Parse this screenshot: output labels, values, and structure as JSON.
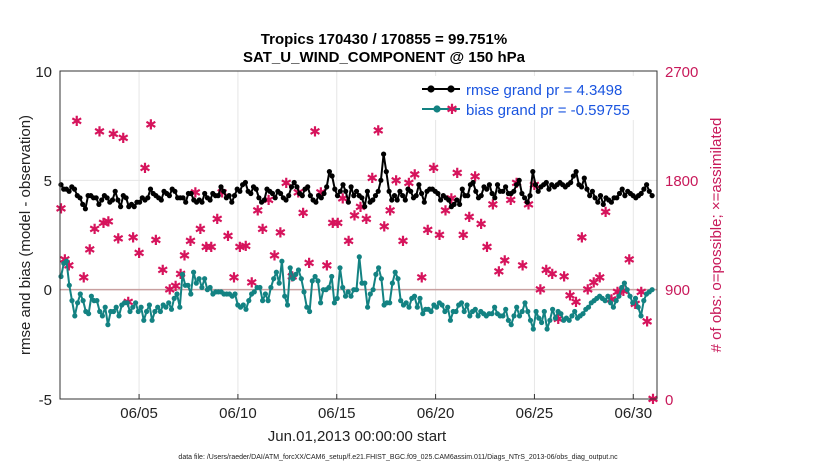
{
  "chart_data": {
    "type": "line",
    "title": "Tropics 170430 / 170855 = 99.751%",
    "subtitle": "SAT_U_WIND_COMPONENT @ 150 hPa",
    "xlabel": "Jun.01,2013 00:00:00 start",
    "ylabel": "rmse and bias (model - observation)",
    "ylabel_right": "# of obs: o=possible; ×=assimilated",
    "footnote": "data file: /Users/raeder/DAI/ATM_forcXX/CAM6_setup/f.e21.FHIST_BGC.f09_025.CAM6assim.011/Diags_NTrS_2013-06/obs_diag_output.nc",
    "xlim": [
      1,
      31.2
    ],
    "ylim": [
      -5,
      10
    ],
    "ylim_right": [
      0,
      2700
    ],
    "x_ticks": [
      {
        "value": 5,
        "label": "06/05"
      },
      {
        "value": 10,
        "label": "06/10"
      },
      {
        "value": 15,
        "label": "06/15"
      },
      {
        "value": 20,
        "label": "06/20"
      },
      {
        "value": 25,
        "label": "06/25"
      },
      {
        "value": 30,
        "label": "06/30"
      }
    ],
    "y_ticks": [
      "-5",
      "0",
      "5",
      "10"
    ],
    "y_ticks_right": [
      "0",
      "900",
      "1800",
      "2700"
    ],
    "grid": true,
    "legend_position": "top-right",
    "colors": {
      "rmse": "#000000",
      "bias": "#138282",
      "obs": "#d6145c",
      "zero_line": "#c8a0a0",
      "grid": "#e6e6e6"
    },
    "series": [
      {
        "name": "rmse grand pr = 4.3498",
        "axis": "left",
        "color": "#000000",
        "values": [
          4.8,
          4.6,
          4.6,
          4.5,
          4.7,
          4.6,
          4.3,
          4.2,
          3.9,
          3.7,
          4.3,
          4.3,
          4.2,
          4.2,
          3.9,
          4.1,
          4.3,
          4.2,
          4.0,
          4.1,
          4.5,
          4.1,
          3.8,
          4.3,
          4.2,
          3.8,
          3.9,
          3.8,
          4.0,
          4.0,
          4.2,
          4.1,
          4.2,
          4.6,
          4.4,
          4.3,
          4.2,
          4.1,
          4.5,
          4.4,
          4.3,
          4.6,
          4.5,
          4.2,
          4.2,
          4.2,
          4.0,
          4.4,
          4.4,
          4.1,
          4.0,
          4.1,
          4.0,
          4.4,
          4.2,
          4.1,
          4.4,
          4.3,
          4.3,
          4.7,
          4.5,
          4.2,
          4.3,
          4.0,
          4.3,
          4.6,
          4.5,
          4.8,
          4.9,
          4.5,
          4.4,
          4.7,
          4.6,
          4.2,
          4.0,
          4.1,
          4.6,
          4.5,
          4.4,
          4.2,
          4.5,
          4.4,
          4.2,
          4.1,
          4.3,
          4.7,
          4.9,
          4.7,
          4.4,
          4.3,
          4.6,
          4.7,
          4.3,
          4.1,
          4.0,
          4.3,
          4.2,
          4.4,
          4.7,
          5.4,
          5.2,
          4.6,
          4.3,
          4.5,
          4.8,
          4.5,
          4.0,
          4.7,
          4.3,
          4.5,
          4.3,
          4.2,
          3.8,
          4.5,
          4.0,
          4.1,
          4.3,
          4.5,
          5.0,
          6.2,
          5.4,
          4.5,
          4.1,
          4.3,
          4.1,
          4.5,
          4.3,
          4.1,
          4.6,
          4.5,
          4.2,
          4.3,
          4.8,
          4.4,
          4.0,
          4.5,
          4.6,
          4.6,
          4.5,
          4.4,
          4.1,
          4.3,
          4.2,
          4.1,
          3.8,
          3.9,
          4.1,
          3.9,
          4.6,
          4.3,
          4.3,
          4.8,
          4.9,
          4.5,
          4.2,
          4.3,
          4.7,
          4.6,
          4.8,
          4.4,
          4.2,
          4.8,
          4.5,
          4.5,
          4.7,
          4.4,
          4.4,
          4.5,
          4.8,
          5.0,
          4.4,
          4.2,
          4.0,
          4.3,
          5.4,
          4.8,
          4.5,
          4.7,
          4.8,
          4.9,
          4.6,
          4.8,
          4.7,
          4.8,
          4.9,
          4.8,
          4.7,
          4.8,
          4.9,
          5.2,
          5.4,
          4.8,
          4.7,
          5.1,
          4.6,
          4.3,
          4.5,
          4.2,
          4.0,
          4.3,
          3.9,
          4.2,
          4.1,
          4.0,
          4.2,
          4.2,
          4.4,
          4.6,
          4.3,
          4.5,
          4.4,
          4.3,
          4.2,
          4.3,
          4.4,
          4.6,
          4.8,
          4.5,
          4.3
        ]
      },
      {
        "name": "bias grand pr = -0.59755",
        "axis": "left",
        "color": "#138282",
        "values": [
          0.6,
          1.2,
          1.3,
          0.2,
          -0.5,
          -1.2,
          -0.6,
          -0.2,
          -0.5,
          -1.0,
          -1.1,
          -0.3,
          -0.5,
          -0.5,
          -1.0,
          -1.2,
          -0.8,
          -1.6,
          -1.0,
          -1.0,
          -0.8,
          -1.2,
          -0.7,
          -0.6,
          -0.6,
          -1.0,
          -0.8,
          -0.6,
          -1.0,
          -0.8,
          -1.4,
          -1.0,
          -0.7,
          -1.4,
          -1.0,
          -0.8,
          -1.0,
          -0.7,
          -0.8,
          -0.6,
          -0.9,
          -0.4,
          -0.2,
          -0.8,
          0.7,
          0.2,
          0.2,
          -0.2,
          0.8,
          0.3,
          0.5,
          0.1,
          0.5,
          0.0,
          0.1,
          -0.2,
          -0.1,
          -0.1,
          -0.1,
          -0.2,
          -0.2,
          -0.2,
          -0.3,
          -0.2,
          -0.7,
          -0.8,
          -0.7,
          -0.9,
          -0.5,
          -0.2,
          -0.1,
          0.1,
          0.1,
          -0.5,
          -0.2,
          -0.5,
          0.1,
          0.5,
          0.8,
          0.3,
          1.3,
          -0.3,
          -0.7,
          1.0,
          0.5,
          0.7,
          0.9,
          0.5,
          -0.1,
          -0.8,
          -1.0,
          0.4,
          0.6,
          0.4,
          -0.6,
          0.0,
          0.0,
          0.1,
          0.6,
          -0.6,
          -0.4,
          1.0,
          0.1,
          -0.3,
          -0.1,
          -0.3,
          0.0,
          0.0,
          1.5,
          0.3,
          0.3,
          -0.8,
          -0.2,
          0.0,
          0.7,
          1.0,
          0.5,
          -0.7,
          -0.6,
          -0.6,
          0.3,
          0.8,
          0.5,
          -0.5,
          -0.7,
          -0.6,
          -0.8,
          -0.4,
          -0.3,
          -0.8,
          -0.4,
          -1.1,
          -0.9,
          -0.9,
          -1.0,
          -0.7,
          -0.8,
          -0.6,
          -0.7,
          -1.0,
          -0.8,
          -1.4,
          -1.0,
          -1.0,
          -0.7,
          -0.6,
          -1.0,
          -0.7,
          -1.2,
          -1.0,
          -0.9,
          -1.2,
          -1.0,
          -1.1,
          -1.2,
          -1.1,
          -1.1,
          -0.8,
          -1.1,
          -1.2,
          -1.2,
          -0.9,
          -1.4,
          -1.6,
          -1.2,
          -0.8,
          -1.2,
          -1.0,
          -0.6,
          -1.0,
          -1.4,
          -1.8,
          -1.0,
          -1.3,
          -1.5,
          -1.0,
          -1.8,
          -1.4,
          -0.9,
          -1.3,
          -1.0,
          -1.1,
          -1.4,
          -1.3,
          -1.4,
          -1.2,
          -1.0,
          -1.3,
          -1.2,
          -1.1,
          -0.9,
          -0.8,
          -0.6,
          -0.5,
          -0.4,
          -0.3,
          -0.4,
          -0.5,
          -0.3,
          -0.6,
          -0.8,
          -0.5,
          -0.3,
          0.1,
          0.3,
          0.0,
          -0.3,
          -0.6,
          -0.4,
          -0.8,
          -1.2,
          -0.5,
          -0.2,
          -0.1,
          0.0
        ]
      },
      {
        "name": "assimilated obs count",
        "axis": "right",
        "color": "#d6145c",
        "x": [
          1.05,
          1.25,
          1.45,
          1.85,
          2.2,
          2.5,
          2.75,
          3.0,
          3.2,
          3.45,
          3.7,
          3.95,
          4.2,
          4.45,
          4.7,
          5.0,
          5.3,
          5.6,
          5.85,
          6.2,
          6.55,
          6.85,
          7.1,
          7.3,
          7.6,
          7.85,
          8.1,
          8.4,
          8.65,
          8.95,
          9.2,
          9.5,
          9.8,
          10.1,
          10.4,
          10.7,
          11.0,
          11.25,
          11.55,
          11.85,
          12.15,
          12.45,
          12.75,
          13.05,
          13.3,
          13.6,
          13.9,
          14.2,
          14.5,
          14.8,
          15.05,
          15.3,
          15.6,
          15.9,
          16.2,
          16.5,
          16.8,
          17.1,
          17.4,
          17.7,
          18.0,
          18.35,
          18.65,
          18.95,
          19.3,
          19.6,
          19.9,
          20.2,
          20.5,
          20.8,
          21.1,
          21.4,
          21.7,
          22.0,
          22.3,
          22.6,
          22.9,
          23.2,
          23.5,
          23.8,
          24.1,
          24.4,
          24.7,
          25.0,
          25.3,
          25.6,
          25.9,
          26.2,
          26.5,
          26.8,
          27.1,
          27.4,
          27.7,
          28.0,
          28.3,
          28.6,
          28.9,
          29.2,
          29.5,
          29.8,
          30.1,
          30.4,
          30.7,
          31.0
        ],
        "values": [
          1570,
          1150,
          1100,
          2290,
          1000,
          1230,
          1400,
          2200,
          1450,
          1460,
          2180,
          1320,
          2150,
          800,
          1330,
          1200,
          1900,
          2260,
          1310,
          1060,
          900,
          930,
          1030,
          1180,
          1300,
          1700,
          1400,
          1250,
          1250,
          1480,
          1700,
          1340,
          1000,
          1250,
          1260,
          960,
          1550,
          1400,
          1640,
          1180,
          1370,
          1780,
          1010,
          1700,
          1530,
          1120,
          2200,
          1700,
          1100,
          1450,
          1450,
          1650,
          1300,
          1510,
          1580,
          1480,
          1820,
          2210,
          1420,
          1550,
          1800,
          1300,
          1780,
          1850,
          1000,
          1390,
          1900,
          1350,
          1550,
          1650,
          1860,
          1350,
          1500,
          1830,
          1440,
          1250,
          1600,
          1050,
          1140,
          1640,
          1780,
          1100,
          1600,
          1760,
          900,
          1060,
          1030,
          660,
          1010,
          850,
          800,
          1330,
          900,
          960,
          1000,
          1540,
          820,
          880,
          890,
          1150,
          780,
          880,
          640,
          0
        ]
      }
    ]
  }
}
